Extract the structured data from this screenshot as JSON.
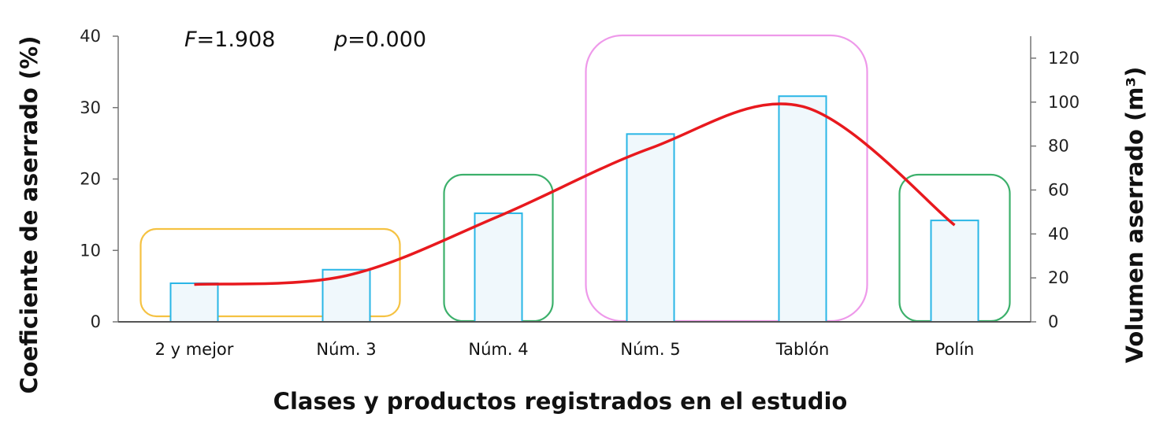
{
  "chart_data": {
    "type": "bar",
    "categories": [
      "2 y mejor",
      "Núm. 3",
      "Núm. 4",
      "Núm. 5",
      "Tablón",
      "Polín"
    ],
    "series": [
      {
        "values": [
          5.4,
          7.3,
          15.2,
          26.3,
          31.6,
          14.2
        ],
        "axis": "left",
        "color": "#29b6e6",
        "fill": "#f0f8fc"
      },
      {
        "values": [
          17,
          21,
          48,
          79,
          98,
          44
        ],
        "axis": "right",
        "type": "line",
        "smooth": true,
        "color": "#e8191e"
      }
    ],
    "xlabel": "Clases y productos registrados en el estudio",
    "ylabel": "Coeficiente de aserrado (%)",
    "y2label": "Volumen aserrado (m³)",
    "ylim": [
      0,
      40
    ],
    "y2lim": [
      0,
      130
    ],
    "yticks": [
      0,
      10,
      20,
      30,
      40
    ],
    "y2ticks": [
      0,
      20,
      40,
      60,
      80,
      100,
      120
    ],
    "grid": false,
    "annotations": {
      "f_label": "F",
      "f_value": "=1.908",
      "p_label": "p",
      "p_value": "=0.000"
    },
    "groups": [
      {
        "categories": [
          "2 y mejor",
          "Núm. 3"
        ],
        "color": "#f5c242"
      },
      {
        "categories": [
          "Núm. 4"
        ],
        "color": "#3cb06b"
      },
      {
        "categories": [
          "Núm. 5",
          "Tablón"
        ],
        "color": "#ee99ea"
      },
      {
        "categories": [
          "Polín"
        ],
        "color": "#3cb06b"
      }
    ]
  }
}
